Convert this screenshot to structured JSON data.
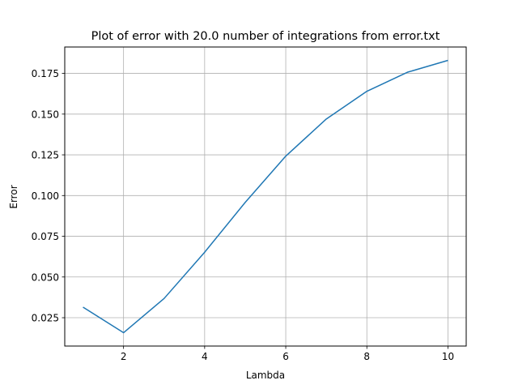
{
  "chart_data": {
    "type": "line",
    "title": "Plot of error with 20.0 number of integrations from error.txt",
    "xlabel": "Lambda",
    "ylabel": "Error",
    "xlim": [
      0.55,
      10.45
    ],
    "ylim": [
      0.0076,
      0.1912
    ],
    "xticks": [
      2,
      4,
      6,
      8,
      10
    ],
    "xtick_labels": [
      "2",
      "4",
      "6",
      "8",
      "10"
    ],
    "yticks": [
      0.025,
      0.05,
      0.075,
      0.1,
      0.125,
      0.15,
      0.175
    ],
    "ytick_labels": [
      "0.025",
      "0.050",
      "0.075",
      "0.100",
      "0.125",
      "0.150",
      "0.175"
    ],
    "grid": true,
    "line_color": "#1f77b4",
    "x": [
      1,
      2,
      3,
      4,
      5,
      6,
      7,
      8,
      9,
      10
    ],
    "y": [
      0.0315,
      0.0158,
      0.0368,
      0.0652,
      0.0958,
      0.1242,
      0.147,
      0.164,
      0.1757,
      0.183
    ]
  }
}
